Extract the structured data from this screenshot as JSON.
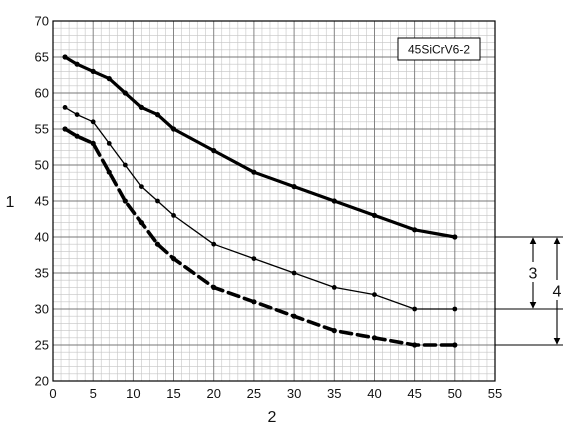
{
  "chart_data": {
    "type": "line",
    "title": "",
    "xlabel": "2",
    "ylabel": "1",
    "xlim": [
      0,
      55
    ],
    "ylim": [
      20,
      70
    ],
    "grid": true,
    "x_ticks": [
      "0",
      "5",
      "10",
      "15",
      "20",
      "25",
      "30",
      "35",
      "40",
      "45",
      "50",
      "55"
    ],
    "y_ticks": [
      "20",
      "25",
      "30",
      "35",
      "40",
      "45",
      "50",
      "55",
      "60",
      "65",
      "70"
    ],
    "legend_box": "45SiCrV6-2",
    "series": [
      {
        "style": "thick-solid",
        "x": [
          1.5,
          3,
          5,
          7,
          9,
          11,
          13,
          15,
          20,
          25,
          30,
          35,
          40,
          45,
          50
        ],
        "y": [
          65,
          64,
          63,
          62,
          60,
          58,
          57,
          55,
          52,
          49,
          47,
          45,
          43,
          41,
          40
        ]
      },
      {
        "style": "thin-solid",
        "x": [
          1.5,
          3,
          5,
          7,
          9,
          11,
          13,
          15,
          20,
          25,
          30,
          35,
          40,
          45,
          50
        ],
        "y": [
          58,
          57,
          56,
          53,
          50,
          47,
          45,
          43,
          39,
          37,
          35,
          33,
          32,
          30,
          30
        ]
      },
      {
        "style": "thick-dashed",
        "x": [
          1.5,
          3,
          5,
          7,
          9,
          11,
          13,
          15,
          20,
          25,
          30,
          35,
          40,
          45,
          50
        ],
        "y": [
          55,
          54,
          53,
          49,
          45,
          42,
          39,
          37,
          33,
          31,
          29,
          27,
          26,
          25,
          25
        ]
      }
    ],
    "range_annotations": [
      {
        "label": "3",
        "from": 40,
        "to": 30
      },
      {
        "label": "4",
        "from": 40,
        "to": 25
      }
    ]
  }
}
